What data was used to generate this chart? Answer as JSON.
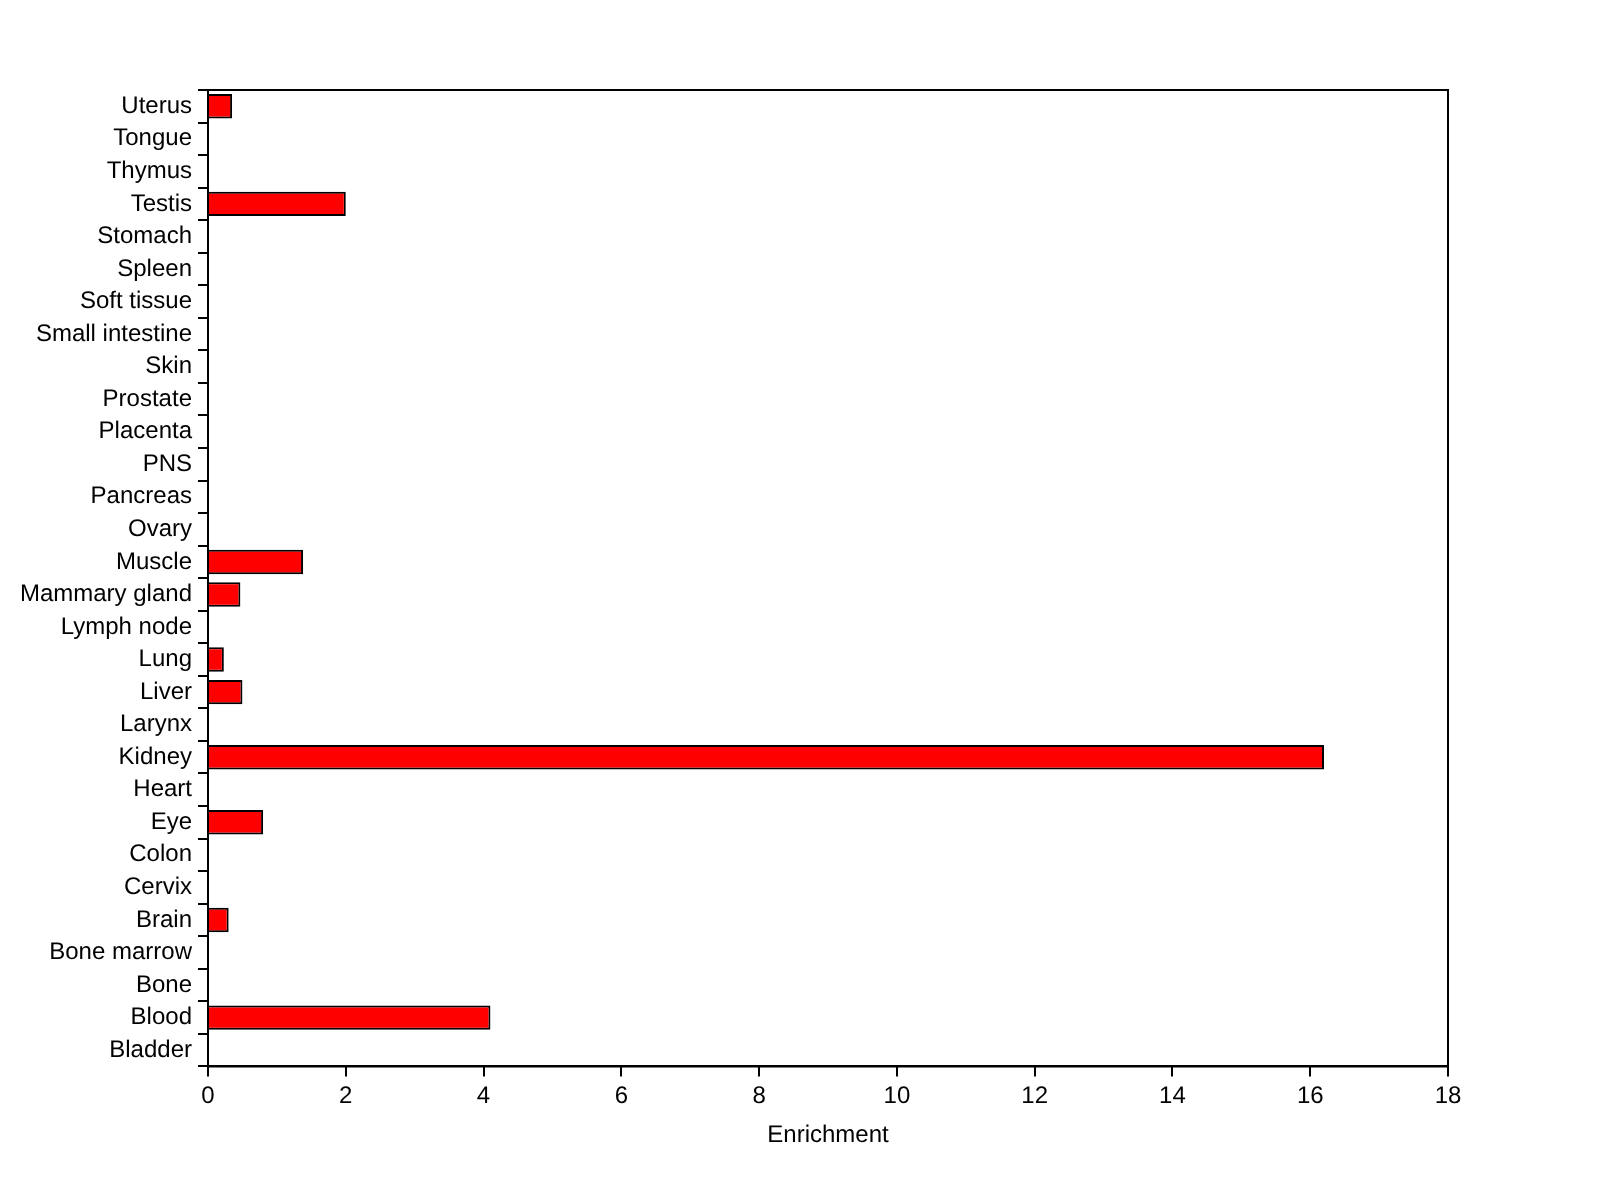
{
  "chart_data": {
    "type": "bar",
    "orientation": "horizontal",
    "xlabel": "Enrichment",
    "categories": [
      "Uterus",
      "Tongue",
      "Thymus",
      "Testis",
      "Stomach",
      "Spleen",
      "Soft tissue",
      "Small intestine",
      "Skin",
      "Prostate",
      "Placenta",
      "PNS",
      "Pancreas",
      "Ovary",
      "Muscle",
      "Mammary gland",
      "Lymph node",
      "Lung",
      "Liver",
      "Larynx",
      "Kidney",
      "Heart",
      "Eye",
      "Colon",
      "Cervix",
      "Brain",
      "Bone marrow",
      "Bone",
      "Blood",
      "Bladder"
    ],
    "values": [
      0.35,
      0,
      0,
      2.0,
      0,
      0,
      0,
      0,
      0,
      0,
      0,
      0,
      0,
      0,
      1.38,
      0.47,
      0,
      0.23,
      0.5,
      0,
      16.2,
      0,
      0.8,
      0,
      0,
      0.3,
      0,
      0,
      4.1,
      0
    ],
    "color": "#ff0000",
    "xlim": [
      0,
      18
    ],
    "xticks": [
      0,
      2,
      4,
      6,
      8,
      10,
      12,
      14,
      16,
      18
    ],
    "grid": false,
    "legend": false
  }
}
